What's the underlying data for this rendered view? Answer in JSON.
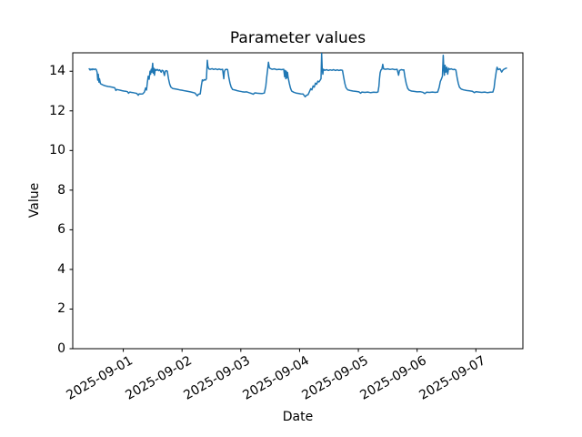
{
  "chart_data": {
    "type": "line",
    "title": "Parameter values",
    "xlabel": "Date",
    "ylabel": "Value",
    "line_color": "#1f77b4",
    "grid": false,
    "legend": "none",
    "x_unit": "days, 1.0 = 2025-09-01 00:00",
    "xlim": [
      0.14,
      7.8
    ],
    "ylim": [
      0,
      14.93
    ],
    "xticks": [
      {
        "value": 1,
        "label": "2025-09-01"
      },
      {
        "value": 2,
        "label": "2025-09-02"
      },
      {
        "value": 3,
        "label": "2025-09-03"
      },
      {
        "value": 4,
        "label": "2025-09-04"
      },
      {
        "value": 5,
        "label": "2025-09-05"
      },
      {
        "value": 6,
        "label": "2025-09-06"
      },
      {
        "value": 7,
        "label": "2025-09-07"
      }
    ],
    "yticks": [
      {
        "value": 0,
        "label": "0"
      },
      {
        "value": 2,
        "label": "2"
      },
      {
        "value": 4,
        "label": "4"
      },
      {
        "value": 6,
        "label": "6"
      },
      {
        "value": 8,
        "label": "8"
      },
      {
        "value": 10,
        "label": "10"
      },
      {
        "value": 12,
        "label": "12"
      },
      {
        "value": 14,
        "label": "14"
      }
    ],
    "series": [
      {
        "name": "value",
        "points": [
          [
            0.42,
            14.12
          ],
          [
            0.435,
            14.06
          ],
          [
            0.45,
            14.11
          ],
          [
            0.465,
            14.07
          ],
          [
            0.48,
            14.12
          ],
          [
            0.5,
            14.08
          ],
          [
            0.52,
            14.11
          ],
          [
            0.54,
            14.09
          ],
          [
            0.555,
            13.95
          ],
          [
            0.565,
            13.55
          ],
          [
            0.575,
            13.85
          ],
          [
            0.585,
            13.45
          ],
          [
            0.595,
            13.62
          ],
          [
            0.61,
            13.38
          ],
          [
            0.63,
            13.34
          ],
          [
            0.66,
            13.3
          ],
          [
            0.7,
            13.26
          ],
          [
            0.74,
            13.23
          ],
          [
            0.78,
            13.21
          ],
          [
            0.82,
            13.19
          ],
          [
            0.855,
            13.16
          ],
          [
            0.875,
            13.03
          ],
          [
            0.89,
            13.08
          ],
          [
            0.92,
            13.06
          ],
          [
            0.95,
            13.04
          ],
          [
            0.98,
            13.02
          ],
          [
            1.01,
            13.0
          ],
          [
            1.04,
            12.99
          ],
          [
            1.07,
            12.97
          ],
          [
            1.09,
            12.89
          ],
          [
            1.11,
            12.95
          ],
          [
            1.14,
            12.93
          ],
          [
            1.17,
            12.92
          ],
          [
            1.2,
            12.9
          ],
          [
            1.23,
            12.88
          ],
          [
            1.255,
            12.79
          ],
          [
            1.27,
            12.86
          ],
          [
            1.3,
            12.85
          ],
          [
            1.33,
            12.86
          ],
          [
            1.36,
            12.95
          ],
          [
            1.38,
            13.15
          ],
          [
            1.395,
            13.05
          ],
          [
            1.41,
            13.45
          ],
          [
            1.425,
            13.75
          ],
          [
            1.44,
            13.6
          ],
          [
            1.455,
            14.0
          ],
          [
            1.465,
            13.85
          ],
          [
            1.475,
            14.1
          ],
          [
            1.485,
            13.95
          ],
          [
            1.5,
            14.4
          ],
          [
            1.51,
            13.9
          ],
          [
            1.52,
            14.15
          ],
          [
            1.53,
            13.8
          ],
          [
            1.545,
            14.1
          ],
          [
            1.56,
            14.05
          ],
          [
            1.58,
            14.09
          ],
          [
            1.6,
            14.03
          ],
          [
            1.62,
            14.07
          ],
          [
            1.645,
            13.95
          ],
          [
            1.66,
            14.05
          ],
          [
            1.68,
            14.02
          ],
          [
            1.7,
            13.78
          ],
          [
            1.715,
            14.0
          ],
          [
            1.73,
            14.03
          ],
          [
            1.75,
            14.0
          ],
          [
            1.77,
            13.62
          ],
          [
            1.79,
            13.35
          ],
          [
            1.81,
            13.2
          ],
          [
            1.84,
            13.13
          ],
          [
            1.88,
            13.11
          ],
          [
            1.92,
            13.09
          ],
          [
            1.96,
            13.06
          ],
          [
            2.0,
            13.04
          ],
          [
            2.05,
            13.01
          ],
          [
            2.1,
            12.98
          ],
          [
            2.14,
            12.96
          ],
          [
            2.18,
            12.93
          ],
          [
            2.22,
            12.9
          ],
          [
            2.26,
            12.76
          ],
          [
            2.28,
            12.84
          ],
          [
            2.31,
            12.86
          ],
          [
            2.33,
            13.3
          ],
          [
            2.345,
            13.56
          ],
          [
            2.36,
            13.52
          ],
          [
            2.38,
            13.58
          ],
          [
            2.4,
            13.55
          ],
          [
            2.415,
            13.62
          ],
          [
            2.43,
            14.55
          ],
          [
            2.44,
            14.25
          ],
          [
            2.455,
            14.12
          ],
          [
            2.48,
            14.1
          ],
          [
            2.51,
            14.13
          ],
          [
            2.54,
            14.09
          ],
          [
            2.57,
            14.12
          ],
          [
            2.6,
            14.08
          ],
          [
            2.63,
            14.11
          ],
          [
            2.66,
            14.08
          ],
          [
            2.69,
            14.1
          ],
          [
            2.71,
            13.62
          ],
          [
            2.72,
            13.98
          ],
          [
            2.735,
            14.08
          ],
          [
            2.76,
            14.1
          ],
          [
            2.775,
            14.08
          ],
          [
            2.795,
            13.7
          ],
          [
            2.815,
            13.4
          ],
          [
            2.835,
            13.2
          ],
          [
            2.86,
            13.08
          ],
          [
            2.9,
            13.05
          ],
          [
            2.94,
            13.02
          ],
          [
            2.98,
            12.99
          ],
          [
            3.02,
            12.97
          ],
          [
            3.06,
            12.95
          ],
          [
            3.1,
            12.96
          ],
          [
            3.14,
            12.92
          ],
          [
            3.18,
            12.88
          ],
          [
            3.21,
            12.84
          ],
          [
            3.24,
            12.91
          ],
          [
            3.28,
            12.89
          ],
          [
            3.32,
            12.88
          ],
          [
            3.36,
            12.87
          ],
          [
            3.4,
            12.9
          ],
          [
            3.425,
            13.25
          ],
          [
            3.44,
            13.7
          ],
          [
            3.455,
            14.05
          ],
          [
            3.47,
            14.45
          ],
          [
            3.485,
            14.18
          ],
          [
            3.5,
            14.14
          ],
          [
            3.53,
            14.1
          ],
          [
            3.57,
            14.12
          ],
          [
            3.61,
            14.08
          ],
          [
            3.65,
            14.1
          ],
          [
            3.69,
            14.08
          ],
          [
            3.73,
            14.1
          ],
          [
            3.745,
            13.72
          ],
          [
            3.755,
            14.04
          ],
          [
            3.765,
            13.62
          ],
          [
            3.775,
            14.0
          ],
          [
            3.785,
            13.66
          ],
          [
            3.795,
            13.94
          ],
          [
            3.805,
            13.7
          ],
          [
            3.825,
            13.4
          ],
          [
            3.845,
            13.15
          ],
          [
            3.865,
            13.0
          ],
          [
            3.9,
            12.94
          ],
          [
            3.94,
            12.9
          ],
          [
            3.98,
            12.88
          ],
          [
            4.02,
            12.86
          ],
          [
            4.06,
            12.85
          ],
          [
            4.095,
            12.71
          ],
          [
            4.115,
            12.78
          ],
          [
            4.145,
            12.82
          ],
          [
            4.17,
            12.98
          ],
          [
            4.19,
            13.12
          ],
          [
            4.21,
            13.06
          ],
          [
            4.23,
            13.26
          ],
          [
            4.25,
            13.2
          ],
          [
            4.27,
            13.4
          ],
          [
            4.29,
            13.34
          ],
          [
            4.31,
            13.5
          ],
          [
            4.33,
            13.46
          ],
          [
            4.35,
            13.55
          ],
          [
            4.365,
            13.62
          ],
          [
            4.375,
            14.9
          ],
          [
            4.385,
            14.15
          ],
          [
            4.395,
            13.85
          ],
          [
            4.405,
            14.1
          ],
          [
            4.43,
            14.05
          ],
          [
            4.46,
            14.08
          ],
          [
            4.49,
            14.04
          ],
          [
            4.52,
            14.07
          ],
          [
            4.55,
            14.05
          ],
          [
            4.58,
            14.08
          ],
          [
            4.61,
            14.04
          ],
          [
            4.64,
            14.07
          ],
          [
            4.67,
            14.04
          ],
          [
            4.7,
            14.06
          ],
          [
            4.73,
            14.05
          ],
          [
            4.75,
            13.7
          ],
          [
            4.77,
            13.38
          ],
          [
            4.79,
            13.17
          ],
          [
            4.82,
            13.06
          ],
          [
            4.86,
            13.03
          ],
          [
            4.91,
            13.0
          ],
          [
            4.96,
            12.98
          ],
          [
            5.01,
            12.96
          ],
          [
            5.04,
            12.89
          ],
          [
            5.06,
            12.95
          ],
          [
            5.11,
            12.93
          ],
          [
            5.16,
            12.95
          ],
          [
            5.21,
            12.92
          ],
          [
            5.26,
            12.94
          ],
          [
            5.31,
            12.93
          ],
          [
            5.335,
            12.96
          ],
          [
            5.35,
            13.25
          ],
          [
            5.36,
            13.62
          ],
          [
            5.37,
            13.92
          ],
          [
            5.385,
            14.06
          ],
          [
            5.4,
            14.1
          ],
          [
            5.415,
            14.35
          ],
          [
            5.43,
            14.12
          ],
          [
            5.46,
            14.1
          ],
          [
            5.5,
            14.12
          ],
          [
            5.54,
            14.09
          ],
          [
            5.58,
            14.11
          ],
          [
            5.62,
            14.08
          ],
          [
            5.66,
            14.1
          ],
          [
            5.685,
            13.8
          ],
          [
            5.7,
            14.04
          ],
          [
            5.73,
            14.08
          ],
          [
            5.76,
            14.06
          ],
          [
            5.775,
            14.07
          ],
          [
            5.795,
            13.68
          ],
          [
            5.815,
            13.38
          ],
          [
            5.84,
            13.14
          ],
          [
            5.865,
            13.04
          ],
          [
            5.905,
            13.0
          ],
          [
            5.95,
            12.98
          ],
          [
            6.0,
            12.96
          ],
          [
            6.05,
            12.97
          ],
          [
            6.095,
            12.94
          ],
          [
            6.13,
            12.87
          ],
          [
            6.16,
            12.94
          ],
          [
            6.21,
            12.93
          ],
          [
            6.26,
            12.95
          ],
          [
            6.31,
            12.93
          ],
          [
            6.35,
            12.95
          ],
          [
            6.375,
            13.18
          ],
          [
            6.395,
            13.48
          ],
          [
            6.415,
            13.62
          ],
          [
            6.43,
            13.74
          ],
          [
            6.445,
            14.8
          ],
          [
            6.455,
            14.1
          ],
          [
            6.465,
            13.8
          ],
          [
            6.475,
            14.3
          ],
          [
            6.49,
            13.95
          ],
          [
            6.505,
            14.2
          ],
          [
            6.52,
            13.85
          ],
          [
            6.535,
            14.15
          ],
          [
            6.555,
            14.1
          ],
          [
            6.58,
            14.12
          ],
          [
            6.61,
            14.08
          ],
          [
            6.635,
            14.1
          ],
          [
            6.66,
            14.06
          ],
          [
            6.68,
            13.7
          ],
          [
            6.7,
            13.4
          ],
          [
            6.72,
            13.2
          ],
          [
            6.75,
            13.1
          ],
          [
            6.79,
            13.06
          ],
          [
            6.84,
            13.03
          ],
          [
            6.89,
            13.01
          ],
          [
            6.94,
            12.99
          ],
          [
            6.975,
            12.92
          ],
          [
            7.0,
            12.97
          ],
          [
            7.05,
            12.95
          ],
          [
            7.1,
            12.93
          ],
          [
            7.15,
            12.95
          ],
          [
            7.2,
            12.92
          ],
          [
            7.245,
            12.94
          ],
          [
            7.29,
            12.95
          ],
          [
            7.31,
            13.15
          ],
          [
            7.325,
            13.55
          ],
          [
            7.34,
            13.85
          ],
          [
            7.35,
            14.05
          ],
          [
            7.36,
            14.2
          ],
          [
            7.38,
            14.08
          ],
          [
            7.41,
            14.12
          ],
          [
            7.44,
            13.96
          ],
          [
            7.465,
            14.08
          ],
          [
            7.49,
            14.12
          ],
          [
            7.52,
            14.16
          ]
        ]
      }
    ]
  }
}
